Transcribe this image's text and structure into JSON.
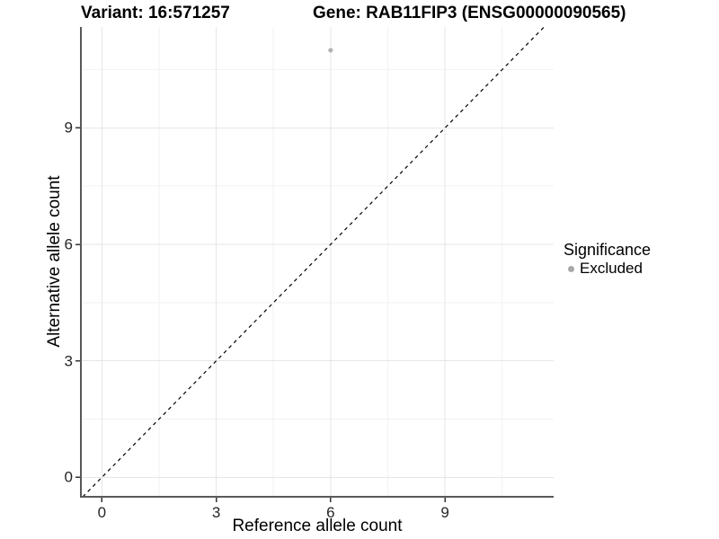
{
  "titles": {
    "variant": "Variant: 16:571257",
    "gene": "Gene: RAB11FIP3 (ENSG00000090565)"
  },
  "chart_data": {
    "type": "scatter",
    "title_left": "Variant: 16:571257",
    "title_right": "Gene: RAB11FIP3 (ENSG00000090565)",
    "xlabel": "Reference allele count",
    "ylabel": "Alternative allele count",
    "points": [
      {
        "x": 6,
        "y": 11,
        "series": "Excluded",
        "color": "#b3b3b3"
      }
    ],
    "x_ticks": [
      0,
      3,
      6,
      9
    ],
    "y_ticks": [
      0,
      3,
      6,
      9
    ],
    "x_minor_ticks": [
      1.5,
      4.5,
      7.5,
      10.5
    ],
    "y_minor_ticks": [
      1.5,
      4.5,
      7.5,
      10.5
    ],
    "xlim": [
      -0.55,
      11.85
    ],
    "ylim": [
      -0.5,
      11.6
    ],
    "grid": true,
    "identity_line": {
      "slope": 1,
      "intercept": 0,
      "linetype": "dashed",
      "color": "#000000"
    },
    "legend": {
      "title": "Significance",
      "position": "right",
      "items": [
        {
          "label": "Excluded",
          "color": "#a8a8a8"
        }
      ]
    }
  }
}
